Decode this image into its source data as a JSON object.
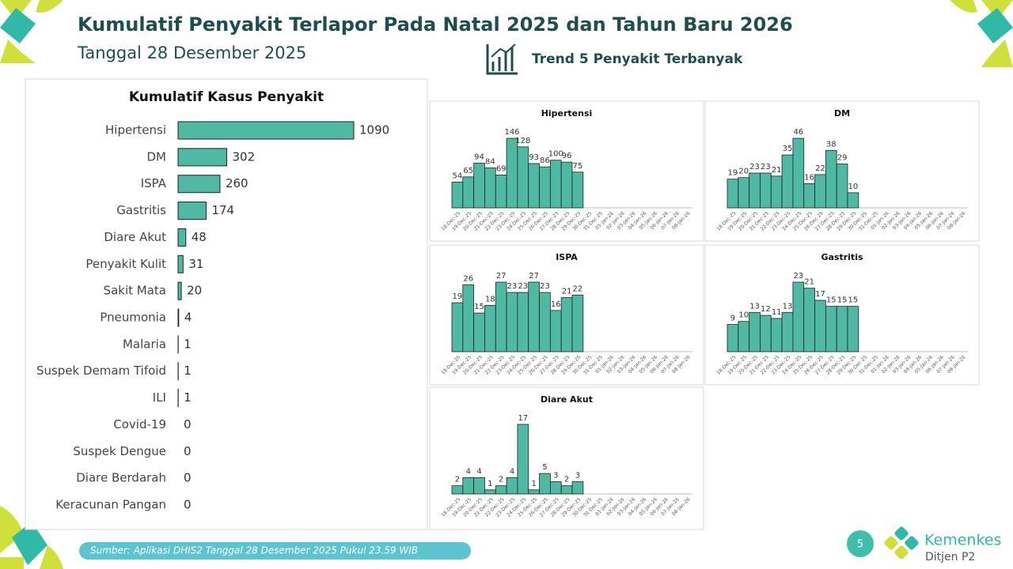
{
  "header": {
    "title": "Kumulatif Penyakit Terlapor Pada Natal 2025 dan Tahun Baru 2026",
    "subtitle": "Tanggal 28 Desember 2025",
    "section": "Trend 5 Penyakit Terbanyak"
  },
  "footer": {
    "source": "Sumber: Aplikasi DHIS2 Tanggal 28 Desember 2025 Pukul 23.59 WIB",
    "page": "5",
    "logo": "Kemenkes",
    "logo_sub": "Ditjen P2"
  },
  "chart_data": [
    {
      "type": "bar",
      "orientation": "horizontal",
      "title": "Kumulatif Kasus Penyakit",
      "color": "#4fb9a3",
      "categories": [
        "Hipertensi",
        "DM",
        "ISPA",
        "Gastritis",
        "Diare Akut",
        "Penyakit Kulit",
        "Sakit Mata",
        "Pneumonia",
        "Malaria",
        "Suspek Demam Tifoid",
        "ILI",
        "Covid-19",
        "Suspek Dengue",
        "Diare Berdarah",
        "Keracunan Pangan"
      ],
      "values": [
        1090,
        302,
        260,
        174,
        48,
        31,
        20,
        4,
        1,
        1,
        1,
        0,
        0,
        0,
        0
      ]
    },
    {
      "type": "bar",
      "title": "Hipertensi",
      "color": "#4fb9a3",
      "categories": [
        "18-Dec-25",
        "19-Dec-25",
        "20-Dec-25",
        "21-Dec-25",
        "22-Dec-25",
        "23-Dec-25",
        "24-Dec-25",
        "25-Dec-25",
        "26-Dec-25",
        "27-Dec-25",
        "28-Dec-25",
        "29-Dec-25",
        "30-Dec-25",
        "31-Dec-25",
        "01-Jan-26",
        "02-Jan-26",
        "03-Jan-26",
        "04-Jan-26",
        "05-Jan-26",
        "06-Jan-26",
        "07-Jan-26",
        "08-Jan-26"
      ],
      "values": [
        54,
        65,
        94,
        84,
        69,
        146,
        128,
        93,
        86,
        100,
        96,
        75,
        null,
        null,
        null,
        null,
        null,
        null,
        null,
        null,
        null,
        null
      ]
    },
    {
      "type": "bar",
      "title": "DM",
      "color": "#4fb9a3",
      "categories": [
        "18-Dec-25",
        "19-Dec-25",
        "20-Dec-25",
        "21-Dec-25",
        "22-Dec-25",
        "23-Dec-25",
        "24-Dec-25",
        "25-Dec-25",
        "26-Dec-25",
        "27-Dec-25",
        "28-Dec-25",
        "29-Dec-25",
        "30-Dec-25",
        "31-Dec-25",
        "01-Jan-26",
        "02-Jan-26",
        "03-Jan-26",
        "04-Jan-26",
        "05-Jan-26",
        "06-Jan-26",
        "07-Jan-26",
        "08-Jan-26"
      ],
      "values": [
        19,
        20,
        23,
        23,
        21,
        35,
        46,
        16,
        22,
        38,
        29,
        10,
        null,
        null,
        null,
        null,
        null,
        null,
        null,
        null,
        null,
        null
      ]
    },
    {
      "type": "bar",
      "title": "ISPA",
      "color": "#4fb9a3",
      "categories": [
        "18-Dec-25",
        "19-Dec-25",
        "20-Dec-25",
        "21-Dec-25",
        "22-Dec-25",
        "23-Dec-25",
        "24-Dec-25",
        "25-Dec-25",
        "26-Dec-25",
        "27-Dec-25",
        "28-Dec-25",
        "29-Dec-25",
        "30-Dec-25",
        "31-Dec-25",
        "01-Jan-26",
        "02-Jan-26",
        "03-Jan-26",
        "04-Jan-26",
        "05-Jan-26",
        "06-Jan-26",
        "07-Jan-26",
        "08-Jan-26"
      ],
      "values": [
        19,
        26,
        15,
        18,
        27,
        23,
        23,
        27,
        23,
        16,
        21,
        22,
        null,
        null,
        null,
        null,
        null,
        null,
        null,
        null,
        null,
        null
      ]
    },
    {
      "type": "bar",
      "title": "Gastritis",
      "color": "#4fb9a3",
      "categories": [
        "18-Dec-25",
        "19-Dec-25",
        "20-Dec-25",
        "21-Dec-25",
        "22-Dec-25",
        "23-Dec-25",
        "24-Dec-25",
        "25-Dec-25",
        "26-Dec-25",
        "27-Dec-25",
        "28-Dec-25",
        "29-Dec-25",
        "30-Dec-25",
        "31-Dec-25",
        "01-Jan-26",
        "02-Jan-26",
        "03-Jan-26",
        "04-Jan-26",
        "05-Jan-26",
        "06-Jan-26",
        "07-Jan-26",
        "08-Jan-26"
      ],
      "values": [
        9,
        10,
        13,
        12,
        11,
        13,
        23,
        21,
        17,
        15,
        15,
        15,
        null,
        null,
        null,
        null,
        null,
        null,
        null,
        null,
        null,
        null
      ]
    },
    {
      "type": "bar",
      "title": "Diare Akut",
      "color": "#4fb9a3",
      "categories": [
        "18-Dec-25",
        "19-Dec-25",
        "20-Dec-25",
        "21-Dec-25",
        "22-Dec-25",
        "23-Dec-25",
        "24-Dec-25",
        "25-Dec-25",
        "26-Dec-25",
        "27-Dec-25",
        "28-Dec-25",
        "29-Dec-25",
        "30-Dec-25",
        "31-Dec-25",
        "01-Jan-26",
        "02-Jan-26",
        "03-Jan-26",
        "04-Jan-26",
        "05-Jan-26",
        "06-Jan-26",
        "07-Jan-26",
        "08-Jan-26"
      ],
      "values": [
        2,
        4,
        4,
        1,
        2,
        4,
        17,
        1,
        5,
        3,
        2,
        3,
        null,
        null,
        null,
        null,
        null,
        null,
        null,
        null,
        null,
        null
      ]
    }
  ]
}
